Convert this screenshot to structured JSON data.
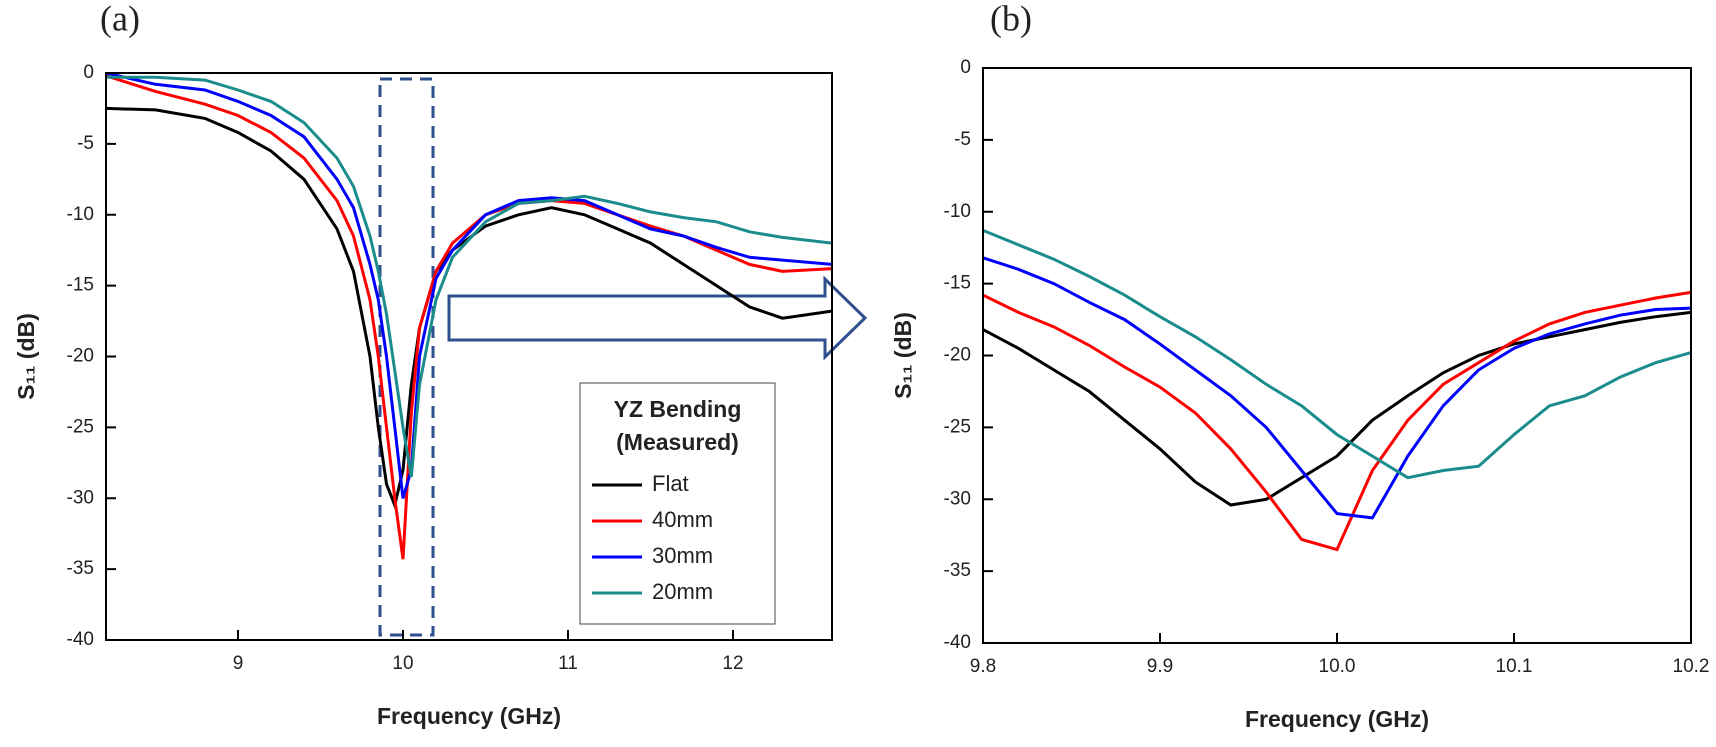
{
  "chart_data": [
    {
      "type": "line",
      "title": "(a)",
      "x_label": "Frequency (GHz)",
      "y_label": "S₁₁ (dB)",
      "legend_title": "YZ Bending",
      "legend_subtitle": "(Measured)",
      "legend": "lower right",
      "xlim": [
        8.2,
        12.6
      ],
      "xticks": [
        9,
        10,
        11,
        12
      ],
      "ylim": [
        -40,
        0
      ],
      "yticks": [
        0,
        -5,
        -10,
        -15,
        -20,
        -25,
        -30,
        -35,
        -40
      ],
      "x": [
        8.2,
        8.5,
        8.8,
        9.0,
        9.2,
        9.4,
        9.6,
        9.7,
        9.8,
        9.85,
        9.9,
        9.95,
        10.0,
        10.05,
        10.1,
        10.2,
        10.3,
        10.5,
        10.7,
        10.9,
        11.1,
        11.3,
        11.5,
        11.7,
        11.9,
        12.1,
        12.3,
        12.6
      ],
      "series": [
        {
          "name": "Flat",
          "color": "#000000",
          "values": [
            -2.5,
            -2.6,
            -3.2,
            -4.2,
            -5.5,
            -7.5,
            -11,
            -14,
            -20,
            -25,
            -29,
            -30.5,
            -28,
            -22,
            -18,
            -14,
            -12.5,
            -10.8,
            -10,
            -9.5,
            -10,
            -11,
            -12,
            -13.5,
            -15,
            -16.5,
            -17.3,
            -16.8
          ]
        },
        {
          "name": "40mm",
          "color": "#ff0000",
          "values": [
            -0.2,
            -1.3,
            -2.2,
            -3,
            -4.2,
            -6,
            -9,
            -11.5,
            -16,
            -20,
            -25,
            -30,
            -34.3,
            -24,
            -18,
            -14,
            -12,
            -10,
            -9.2,
            -9,
            -9.2,
            -10,
            -10.8,
            -11.5,
            -12.5,
            -13.5,
            -14,
            -13.8
          ]
        },
        {
          "name": "30mm",
          "color": "#0000ff",
          "values": [
            0,
            -0.8,
            -1.2,
            -2,
            -3,
            -4.5,
            -7.5,
            -9.5,
            -13.5,
            -16,
            -20,
            -25,
            -30,
            -28,
            -20,
            -14.5,
            -12.5,
            -10,
            -9,
            -8.8,
            -9,
            -10,
            -11,
            -11.5,
            -12.3,
            -13,
            -13.2,
            -13.5
          ]
        },
        {
          "name": "20mm",
          "color": "#1a8c8c",
          "values": [
            -0.3,
            -0.3,
            -0.5,
            -1.2,
            -2,
            -3.5,
            -6,
            -8,
            -11.5,
            -14,
            -17,
            -21,
            -25,
            -28.5,
            -22,
            -16,
            -13,
            -10.5,
            -9.2,
            -9,
            -8.7,
            -9.2,
            -9.8,
            -10.2,
            -10.5,
            -11.2,
            -11.6,
            -12
          ]
        }
      ]
    },
    {
      "type": "line",
      "title": "(b)",
      "x_label": "Frequency (GHz)",
      "y_label": "S₁₁ (dB)",
      "xlim": [
        9.8,
        10.2
      ],
      "xticks": [
        9.8,
        9.9,
        {
          "value": 10,
          "label": "10.0"
        },
        10.1,
        10.2
      ],
      "ylim": [
        -40,
        0
      ],
      "yticks": [
        0,
        -5,
        -10,
        -15,
        -20,
        -25,
        -30,
        -35,
        -40
      ],
      "x": [
        9.8,
        9.82,
        9.84,
        9.86,
        9.88,
        9.9,
        9.92,
        9.94,
        9.96,
        9.98,
        10.0,
        10.02,
        10.04,
        10.06,
        10.08,
        10.1,
        10.12,
        10.14,
        10.16,
        10.18,
        10.2
      ],
      "series": [
        {
          "name": "Flat",
          "color": "#000000",
          "values": [
            -18.2,
            -19.5,
            -21,
            -22.5,
            -24.5,
            -26.5,
            -28.8,
            -30.4,
            -30,
            -28.5,
            -27,
            -24.5,
            -22.8,
            -21.2,
            -20,
            -19.2,
            -18.7,
            -18.2,
            -17.7,
            -17.3,
            -17
          ]
        },
        {
          "name": "40mm",
          "color": "#ff0000",
          "values": [
            -15.8,
            -17,
            -18,
            -19.3,
            -20.8,
            -22.2,
            -24,
            -26.5,
            -29.5,
            -32.8,
            -33.5,
            -28,
            -24.5,
            -22,
            -20.5,
            -19,
            -17.8,
            -17,
            -16.5,
            -16,
            -15.6
          ]
        },
        {
          "name": "30mm",
          "color": "#0000ff",
          "values": [
            -13.2,
            -14,
            -15,
            -16.3,
            -17.5,
            -19.2,
            -21,
            -22.8,
            -25,
            -28,
            -31,
            -31.3,
            -27,
            -23.5,
            -21,
            -19.5,
            -18.5,
            -17.8,
            -17.2,
            -16.8,
            -16.7
          ]
        },
        {
          "name": "20mm",
          "color": "#1a8c8c",
          "values": [
            -11.3,
            -12.3,
            -13.3,
            -14.5,
            -15.8,
            -17.3,
            -18.7,
            -20.3,
            -22,
            -23.5,
            -25.5,
            -27,
            -28.5,
            -28,
            -27.7,
            -25.5,
            -23.5,
            -22.8,
            -21.5,
            -20.5,
            -19.8
          ]
        }
      ]
    }
  ]
}
